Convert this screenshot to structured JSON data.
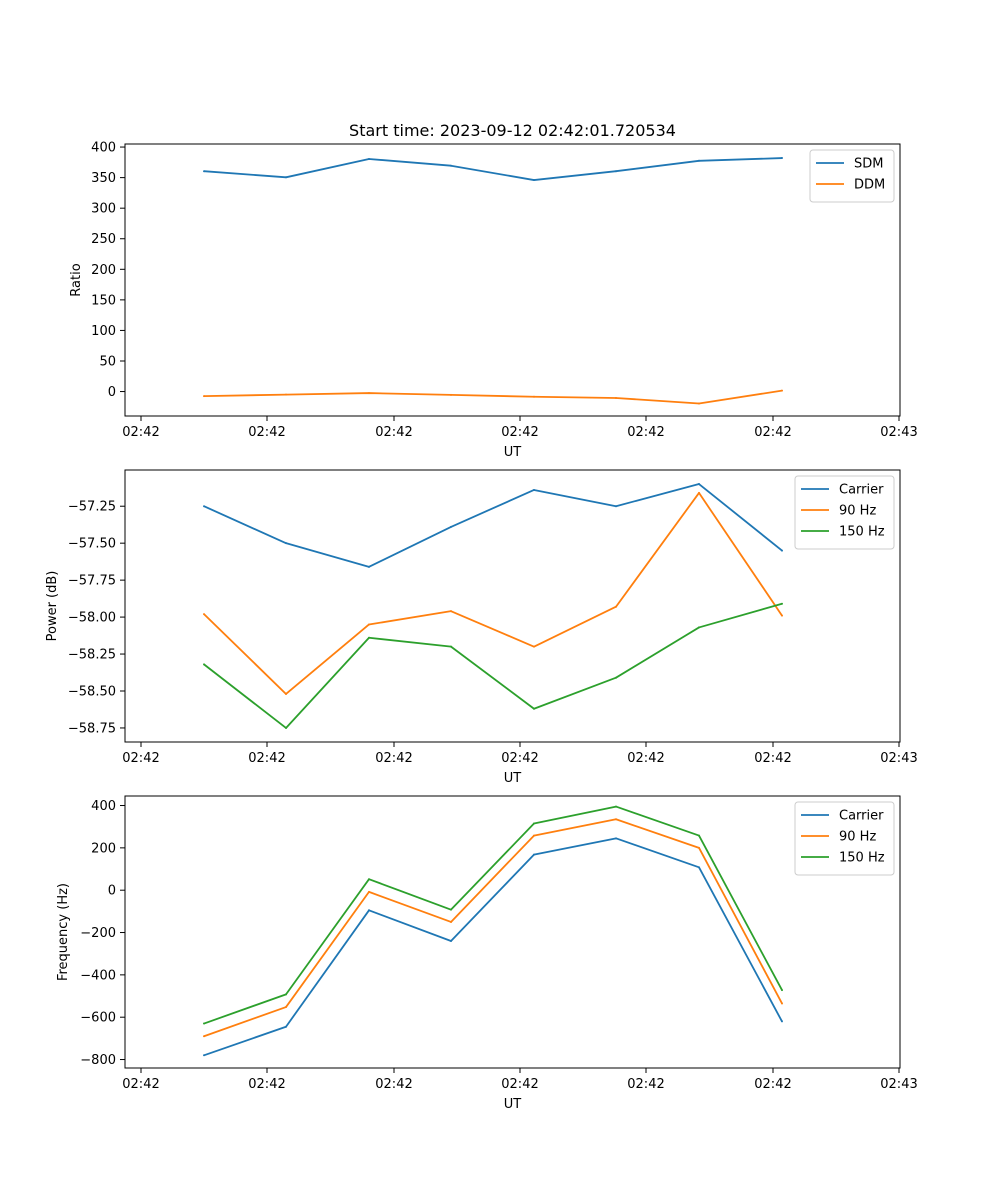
{
  "chart_data": [
    {
      "type": "line",
      "title": "Start time: 2023-09-12 02:42:01.720534",
      "xlabel": "UT",
      "ylabel": "Ratio",
      "xticks": [
        "02:42",
        "02:42",
        "02:42",
        "02:42",
        "02:42",
        "02:42",
        "02:43"
      ],
      "yticks": [
        0,
        50,
        100,
        150,
        200,
        250,
        300,
        350,
        400
      ],
      "ylim": [
        -40,
        405
      ],
      "legend_position": "top-right",
      "x": [
        1,
        2,
        3,
        4,
        5,
        6,
        7,
        8
      ],
      "series": [
        {
          "name": "SDM",
          "color": "#1f77b4",
          "values": [
            360.5,
            350.5,
            380.5,
            369.5,
            346,
            360.5,
            377.5,
            382
          ]
        },
        {
          "name": "DDM",
          "color": "#ff7f0e",
          "values": [
            -7.5,
            -5,
            -2.5,
            -5.5,
            -8.5,
            -10.5,
            -19.5,
            1.5
          ]
        }
      ]
    },
    {
      "type": "line",
      "title": "",
      "xlabel": "UT",
      "ylabel": "Power (dB)",
      "xticks": [
        "02:42",
        "02:42",
        "02:42",
        "02:42",
        "02:42",
        "02:42",
        "02:43"
      ],
      "yticks": [
        -57.25,
        -57.5,
        -57.75,
        -58.0,
        -58.25,
        -58.5,
        -58.75
      ],
      "ytick_labels": [
        "−57.25",
        "−57.50",
        "−57.75",
        "−58.00",
        "−58.25",
        "−58.50",
        "−58.75"
      ],
      "ylim": [
        -58.845,
        -57.005
      ],
      "legend_position": "top-right",
      "x": [
        1,
        2,
        3,
        4,
        5,
        6,
        7,
        8
      ],
      "series": [
        {
          "name": "Carrier",
          "color": "#1f77b4",
          "values": [
            -57.25,
            -57.5,
            -57.66,
            -57.39,
            -57.14,
            -57.25,
            -57.1,
            -57.55
          ]
        },
        {
          "name": "90 Hz",
          "color": "#ff7f0e",
          "values": [
            -57.98,
            -58.52,
            -58.05,
            -57.96,
            -58.2,
            -57.93,
            -57.16,
            -57.99
          ]
        },
        {
          "name": "150 Hz",
          "color": "#2ca02c",
          "values": [
            -58.32,
            -58.75,
            -58.14,
            -58.2,
            -58.62,
            -58.41,
            -58.07,
            -57.91
          ]
        }
      ]
    },
    {
      "type": "line",
      "title": "",
      "xlabel": "UT",
      "ylabel": "Frequency (Hz)",
      "xticks": [
        "02:42",
        "02:42",
        "02:42",
        "02:42",
        "02:42",
        "02:42",
        "02:43"
      ],
      "yticks": [
        -800,
        -600,
        -400,
        -200,
        0,
        200,
        400
      ],
      "ytick_labels": [
        "−800",
        "−600",
        "−400",
        "−200",
        "0",
        "200",
        "400"
      ],
      "ylim": [
        -840,
        445
      ],
      "legend_position": "top-right",
      "x": [
        1,
        2,
        3,
        4,
        5,
        6,
        7,
        8
      ],
      "series": [
        {
          "name": "Carrier",
          "color": "#1f77b4",
          "values": [
            -780,
            -645,
            -95,
            -240,
            168,
            245,
            108,
            -620
          ]
        },
        {
          "name": "90 Hz",
          "color": "#ff7f0e",
          "values": [
            -690,
            -552,
            -8,
            -150,
            258,
            335,
            200,
            -535
          ]
        },
        {
          "name": "150 Hz",
          "color": "#2ca02c",
          "values": [
            -630,
            -492,
            52,
            -92,
            315,
            395,
            258,
            -472
          ]
        }
      ]
    }
  ]
}
